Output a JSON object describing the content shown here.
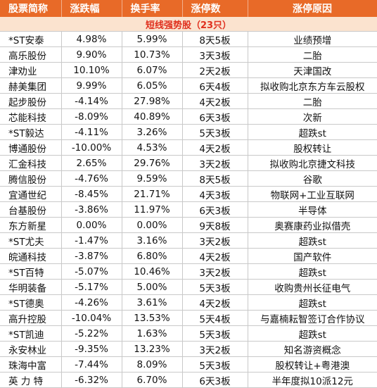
{
  "headers": [
    "股票简称",
    "涨跌幅",
    "换手率",
    "涨停数",
    "涨停原因"
  ],
  "subtitle": "短线强势股（23只）",
  "rows": [
    [
      "*ST安泰",
      "4.98%",
      "5.99%",
      "8天5板",
      "业绩预增"
    ],
    [
      "高乐股份",
      "9.90%",
      "10.73%",
      "3天3板",
      "二胎"
    ],
    [
      "津劝业",
      "10.10%",
      "6.07%",
      "2天2板",
      "天津国改"
    ],
    [
      "赫美集团",
      "9.99%",
      "6.05%",
      "6天4板",
      "拟收购北京东方车云股权"
    ],
    [
      "起步股份",
      "-4.14%",
      "27.98%",
      "4天2板",
      "二胎"
    ],
    [
      "芯能科技",
      "-8.09%",
      "40.89%",
      "6天3板",
      "次新"
    ],
    [
      "*ST毅达",
      "-4.11%",
      "3.26%",
      "5天3板",
      "超跌st"
    ],
    [
      "博通股份",
      "-10.00%",
      "4.53%",
      "4天2板",
      "股权转让"
    ],
    [
      "汇金科技",
      "2.65%",
      "29.76%",
      "3天2板",
      "拟收购北京捷文科技"
    ],
    [
      "腾信股份",
      "-4.76%",
      "9.59%",
      "8天5板",
      "谷歌"
    ],
    [
      "宜通世纪",
      "-8.45%",
      "21.71%",
      "4天3板",
      "物联网+工业互联网"
    ],
    [
      "台基股份",
      "-3.86%",
      "11.97%",
      "6天3板",
      "半导体"
    ],
    [
      "东方新星",
      "0.00%",
      "0.00%",
      "9天8板",
      "奥赛康药业拟借壳"
    ],
    [
      "*ST尤夫",
      "-1.47%",
      "3.16%",
      "3天2板",
      "超跌st"
    ],
    [
      "皖通科技",
      "-3.87%",
      "6.80%",
      "4天2板",
      "国产软件"
    ],
    [
      "*ST百特",
      "-5.07%",
      "10.46%",
      "3天2板",
      "超跌st"
    ],
    [
      "华明装备",
      "-5.17%",
      "5.00%",
      "5天3板",
      "收购贵州长征电气"
    ],
    [
      "*ST德奥",
      "-4.26%",
      "3.61%",
      "4天2板",
      "超跌st"
    ],
    [
      "高升控股",
      "-10.04%",
      "13.53%",
      "5天4板",
      "与嘉楠耘智签订合作协议"
    ],
    [
      "*ST凯迪",
      "-5.22%",
      "1.63%",
      "5天3板",
      "超跌st"
    ],
    [
      "永安林业",
      "-9.35%",
      "13.23%",
      "3天2板",
      "知名游资概念"
    ],
    [
      "珠海中富",
      "-7.44%",
      "8.09%",
      "5天3板",
      "股权转让+粤港澳"
    ],
    [
      "英 力 特",
      "-6.32%",
      "6.70%",
      "6天3板",
      "半年度拟10派12元"
    ]
  ]
}
